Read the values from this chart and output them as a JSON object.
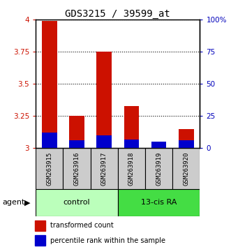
{
  "title": "GDS3215 / 39599_at",
  "samples": [
    "GSM263915",
    "GSM263916",
    "GSM263917",
    "GSM263918",
    "GSM263919",
    "GSM263920"
  ],
  "red_values": [
    3.99,
    3.25,
    3.75,
    3.33,
    3.03,
    3.15
  ],
  "percentile_values": [
    12,
    6,
    10,
    7,
    5,
    6
  ],
  "ylim_left": [
    3.0,
    4.0
  ],
  "ylim_right": [
    0,
    100
  ],
  "yticks_left": [
    3.0,
    3.25,
    3.5,
    3.75,
    4.0
  ],
  "ytick_labels_left": [
    "3",
    "3.25",
    "3.5",
    "3.75",
    "4"
  ],
  "yticks_right": [
    0,
    25,
    50,
    75,
    100
  ],
  "ytick_labels_right": [
    "0",
    "25",
    "50",
    "75",
    "100%"
  ],
  "bar_width": 0.55,
  "red_color": "#CC1100",
  "blue_color": "#0000CC",
  "background_label": "#CCCCCC",
  "control_color": "#BBFFBB",
  "ra_color": "#44DD44",
  "title_fontsize": 10,
  "tick_fontsize": 7.5,
  "legend_fontsize": 7,
  "sample_fontsize": 6.5,
  "group_fontsize": 8
}
